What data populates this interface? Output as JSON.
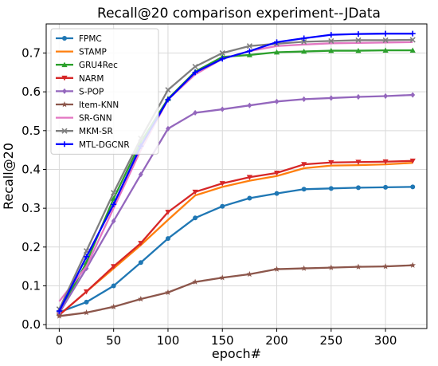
{
  "chart_data": {
    "type": "line",
    "title": "Recall@20 comparison experiment--JData",
    "xlabel": "epoch#",
    "ylabel": "Recall@20",
    "xlim": [
      -12,
      338
    ],
    "ylim": [
      -0.01,
      0.775
    ],
    "xticks": [
      0,
      50,
      100,
      150,
      200,
      250,
      300
    ],
    "yticks": [
      0.0,
      0.1,
      0.2,
      0.3,
      0.4,
      0.5,
      0.6,
      0.7
    ],
    "grid": true,
    "legend_position": "top-left",
    "x": [
      0,
      25,
      50,
      75,
      100,
      125,
      150,
      175,
      200,
      225,
      250,
      275,
      300,
      325
    ],
    "series": [
      {
        "name": "FPMC",
        "color": "#1f77b4",
        "marker": "circle",
        "values": [
          0.032,
          0.058,
          0.1,
          0.16,
          0.222,
          0.275,
          0.305,
          0.326,
          0.338,
          0.349,
          0.351,
          0.353,
          0.354,
          0.355
        ]
      },
      {
        "name": "STAMP",
        "color": "#ff7f0e",
        "marker": "none",
        "values": [
          0.025,
          0.085,
          0.145,
          0.205,
          0.27,
          0.333,
          0.355,
          0.371,
          0.383,
          0.403,
          0.41,
          0.411,
          0.413,
          0.417
        ]
      },
      {
        "name": "GRU4Rec",
        "color": "#2ca02c",
        "marker": "triangle-up",
        "values": [
          0.03,
          0.16,
          0.325,
          0.47,
          0.582,
          0.652,
          0.69,
          0.695,
          0.702,
          0.704,
          0.706,
          0.706,
          0.707,
          0.707
        ]
      },
      {
        "name": "NARM",
        "color": "#d62728",
        "marker": "triangle-down",
        "values": [
          0.025,
          0.085,
          0.15,
          0.21,
          0.29,
          0.342,
          0.364,
          0.38,
          0.391,
          0.413,
          0.418,
          0.419,
          0.42,
          0.422
        ]
      },
      {
        "name": "S-POP",
        "color": "#9467bd",
        "marker": "diamond",
        "values": [
          0.03,
          0.145,
          0.267,
          0.387,
          0.505,
          0.546,
          0.555,
          0.565,
          0.575,
          0.581,
          0.584,
          0.587,
          0.589,
          0.592
        ]
      },
      {
        "name": "Item-KNN",
        "color": "#8c564b",
        "marker": "star",
        "values": [
          0.022,
          0.031,
          0.046,
          0.066,
          0.083,
          0.11,
          0.121,
          0.13,
          0.143,
          0.145,
          0.147,
          0.149,
          0.15,
          0.153
        ]
      },
      {
        "name": "SR-GNN",
        "color": "#e377c2",
        "marker": "none",
        "values": [
          0.06,
          0.15,
          0.3,
          0.45,
          0.58,
          0.645,
          0.685,
          0.705,
          0.718,
          0.722,
          0.725,
          0.726,
          0.727,
          0.728
        ]
      },
      {
        "name": "MKM-SR",
        "color": "#7f7f7f",
        "marker": "x",
        "values": [
          0.04,
          0.19,
          0.34,
          0.48,
          0.605,
          0.665,
          0.7,
          0.718,
          0.724,
          0.729,
          0.731,
          0.733,
          0.733,
          0.734
        ]
      },
      {
        "name": "MTL-DGCNR",
        "color": "#0000ff",
        "marker": "plus",
        "values": [
          0.035,
          0.175,
          0.31,
          0.46,
          0.58,
          0.65,
          0.685,
          0.705,
          0.728,
          0.738,
          0.747,
          0.749,
          0.75,
          0.75
        ]
      }
    ]
  }
}
